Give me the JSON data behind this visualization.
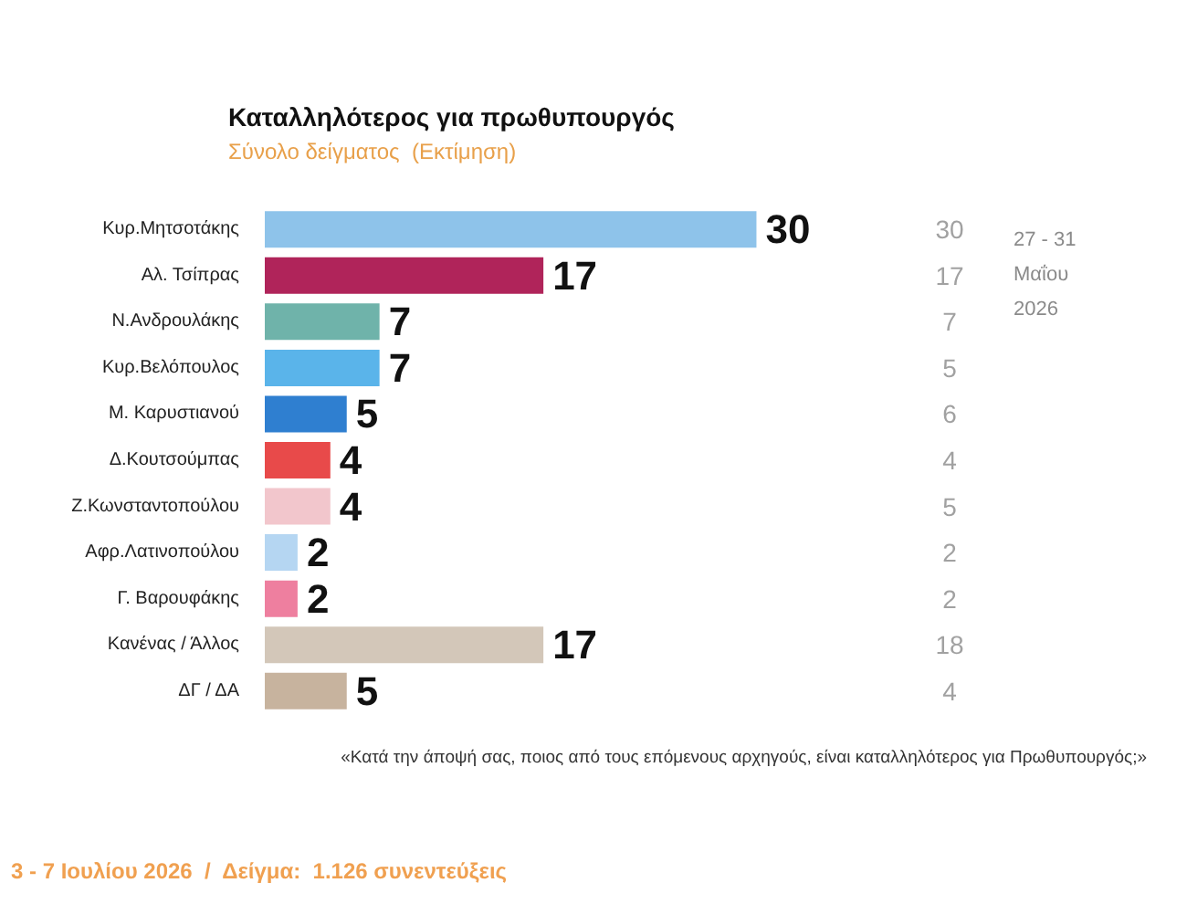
{
  "chart_data": [
    {
      "type": "bar",
      "orientation": "horizontal",
      "title": "Καταλληλότερος για πρωθυπουργός",
      "subtitle": "Σύνολο δείγματος  (Εκτίμηση)",
      "categories": [
        "Κυρ.Μητσοτάκης",
        "Αλ. Τσίπρας",
        "Ν.Ανδρουλάκης",
        "Κυρ.Βελόπουλος",
        "Μ. Καρυστιανού",
        "Δ.Κουτσούμπας",
        "Ζ.Κωνσταντοπούλου",
        "Αφρ.Λατινοπούλου",
        "Γ. Βαρουφάκης",
        "Κανένας / Άλλος",
        "ΔΓ / ΔΑ"
      ],
      "values": [
        30,
        17,
        7,
        7,
        5,
        4,
        4,
        2,
        2,
        17,
        5
      ],
      "colors": [
        "#8ec3ea",
        "#b0245a",
        "#6fb3aa",
        "#5ab4ea",
        "#2f7fd0",
        "#e84a4a",
        "#f2c6cc",
        "#b5d6f2",
        "#ee7f9f",
        "#d3c7b9",
        "#c7b39e"
      ],
      "data_labels": true,
      "tick_labels": "y",
      "annotations": [
        "«Κατά την άποψή σας, ποιος από τους επόμενους αρχηγούς, είναι καταλληλότερος για Πρωθυπουργός;»",
        "3 - 7 Ιουλίου 2026  /  Δείγμα:  1.126 συνεντεύξεις"
      ]
    },
    {
      "type": "other",
      "title": "27 - 31 Μαΐου 2026",
      "values": [
        30,
        17,
        7,
        5,
        6,
        4,
        5,
        2,
        2,
        18,
        4
      ],
      "data_labels": true
    }
  ]
}
